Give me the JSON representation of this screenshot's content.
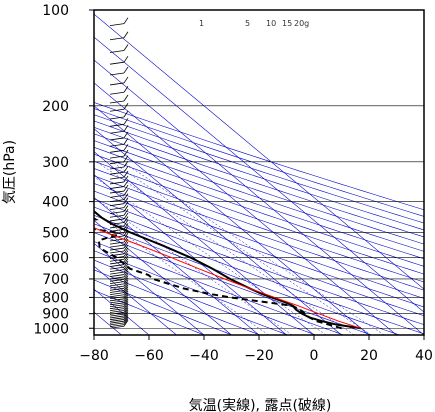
{
  "chart_data": {
    "type": "line",
    "title": "",
    "xlabel": "気温(実線), 露点(破線)",
    "ylabel": "気圧(hPa)",
    "xlim": [
      -80,
      40
    ],
    "ylim": [
      1050,
      100
    ],
    "y_scale": "log",
    "x_ticks": [
      -80,
      -60,
      -40,
      -20,
      0,
      20,
      40
    ],
    "x_tick_labels": [
      "−80",
      "−60",
      "−40",
      "−20",
      "0",
      "20",
      "40"
    ],
    "y_ticks": [
      100,
      200,
      300,
      400,
      500,
      600,
      700,
      800,
      900,
      1000
    ],
    "y_tick_labels": [
      "100",
      "200",
      "300",
      "400",
      "500",
      "600",
      "700",
      "800",
      "900",
      "1000"
    ],
    "mixing_ratio_labels": [
      "1",
      "5",
      "10",
      "15",
      "20g"
    ],
    "colors": {
      "temperature": "#000000",
      "dewpoint": "#000000",
      "parcel": "#ff0000",
      "isotherms_and_adiabats": "#0000cc",
      "grid": "#000000"
    },
    "series": [
      {
        "key": "temperature",
        "style": "solid",
        "points": [
          [
            1000,
            20
          ],
          [
            975,
            13
          ],
          [
            950,
            9
          ],
          [
            925,
            6
          ],
          [
            900,
            5
          ],
          [
            875,
            4.5
          ],
          [
            850,
            5
          ],
          [
            830,
            4
          ],
          [
            800,
            1
          ],
          [
            780,
            -1
          ],
          [
            750,
            -3
          ],
          [
            700,
            -6
          ],
          [
            650,
            -8
          ],
          [
            600,
            -11
          ],
          [
            550,
            -16
          ],
          [
            500,
            -22
          ],
          [
            470,
            -25
          ],
          [
            450,
            -26
          ],
          [
            420,
            -26
          ],
          [
            400,
            -28
          ],
          [
            380,
            -30
          ],
          [
            350,
            -32
          ],
          [
            320,
            -34
          ],
          [
            300,
            -37
          ],
          [
            280,
            -42
          ],
          [
            250,
            -50
          ],
          [
            225,
            -55
          ],
          [
            200,
            -56
          ],
          [
            175,
            -57
          ],
          [
            150,
            -59
          ],
          [
            125,
            -60
          ],
          [
            110,
            -61
          ],
          [
            100,
            -62
          ]
        ]
      },
      {
        "key": "dewpoint",
        "style": "dashed",
        "points": [
          [
            1000,
            13
          ],
          [
            950,
            7
          ],
          [
            925,
            6
          ],
          [
            900,
            6
          ],
          [
            880,
            6
          ],
          [
            850,
            5
          ],
          [
            800,
            -14
          ],
          [
            780,
            -20
          ],
          [
            750,
            -27
          ],
          [
            700,
            -34
          ],
          [
            680,
            -34
          ],
          [
            650,
            -38
          ],
          [
            600,
            -38
          ],
          [
            560,
            -40
          ],
          [
            540,
            -38
          ],
          [
            530,
            -37
          ],
          [
            520,
            -33
          ],
          [
            510,
            -28
          ],
          [
            500,
            -27
          ],
          [
            490,
            -33
          ],
          [
            470,
            -38
          ],
          [
            460,
            -36
          ],
          [
            455,
            -29
          ],
          [
            440,
            -30
          ],
          [
            430,
            -35
          ],
          [
            420,
            -30
          ],
          [
            410,
            -26
          ],
          [
            400,
            -26
          ],
          [
            380,
            -26
          ],
          [
            360,
            -26
          ],
          [
            340,
            -28
          ],
          [
            320,
            -30
          ],
          [
            300,
            -38
          ],
          [
            275,
            -46
          ],
          [
            270,
            -70
          ],
          [
            268,
            -80
          ]
        ]
      },
      {
        "key": "parcel",
        "style": "solid",
        "points": [
          [
            1000,
            20
          ],
          [
            950,
            15
          ],
          [
            900,
            11
          ],
          [
            850,
            7
          ],
          [
            800,
            2
          ],
          [
            750,
            -3
          ],
          [
            700,
            -8
          ],
          [
            650,
            -13
          ],
          [
            600,
            -18
          ],
          [
            550,
            -24
          ],
          [
            500,
            -31
          ],
          [
            450,
            -38
          ],
          [
            400,
            -46
          ],
          [
            350,
            -55
          ],
          [
            300,
            -65
          ],
          [
            250,
            -75
          ],
          [
            205,
            -85
          ]
        ]
      }
    ]
  }
}
